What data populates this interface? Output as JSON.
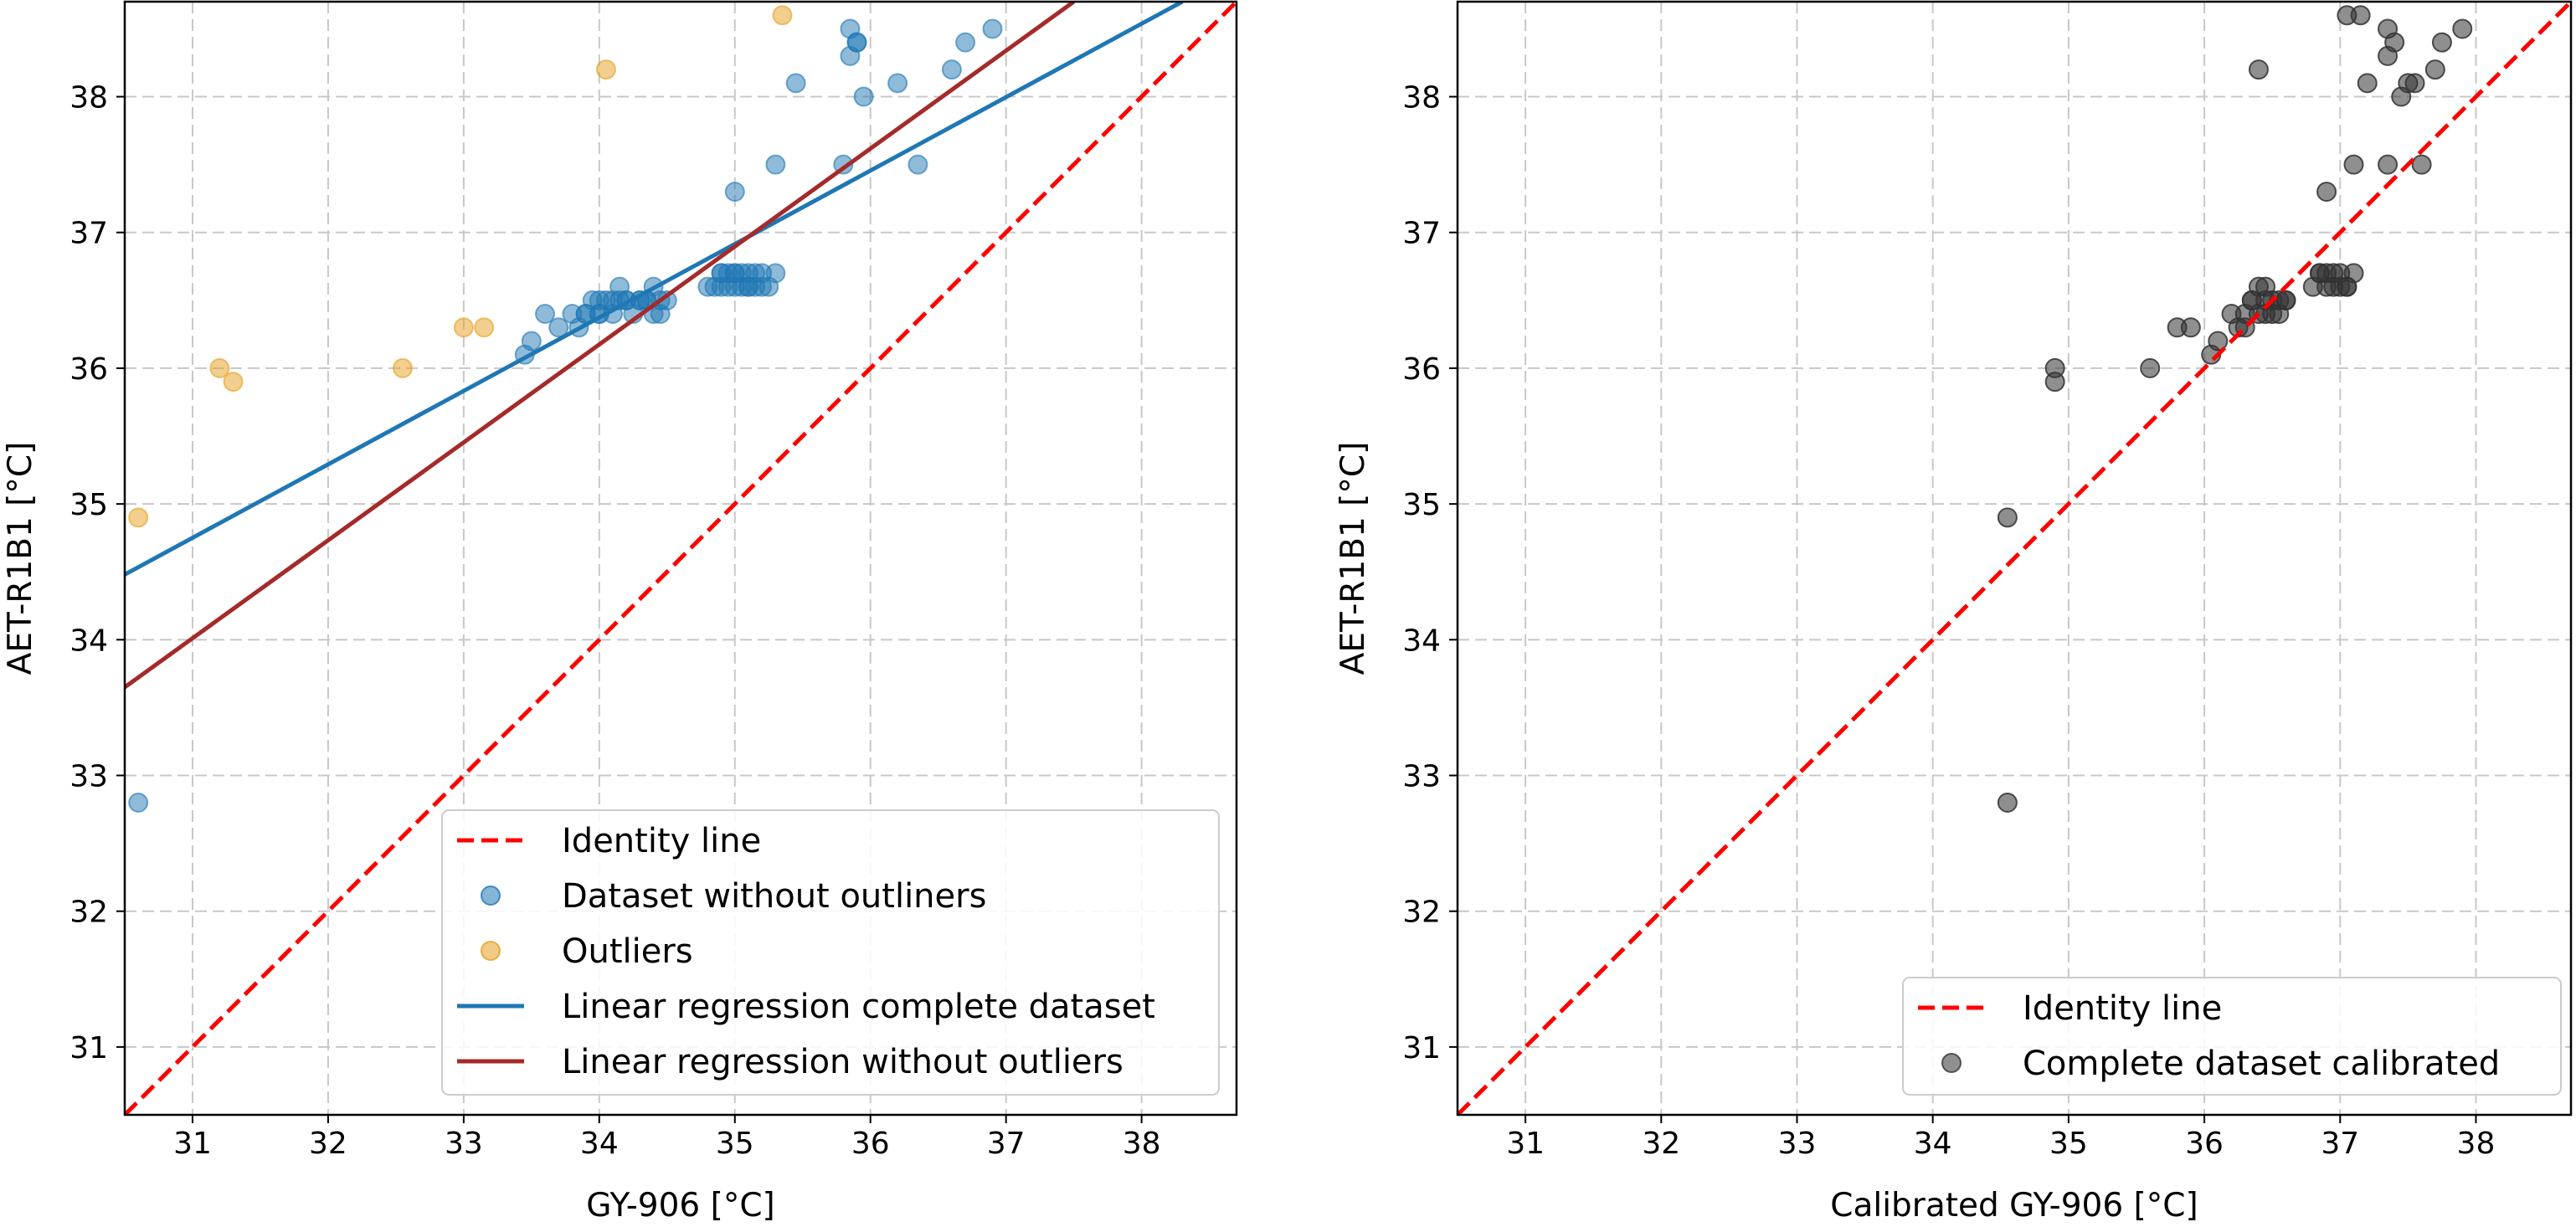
{
  "colors": {
    "identity": "#ff0000",
    "dataset": "#1f77b4",
    "outliers": "#e5a020",
    "reg_complete": "#1f77b4",
    "reg_without": "#a52a2a",
    "calibrated": "#333333",
    "grid": "#c8c8c8"
  },
  "chart_data": [
    {
      "type": "scatter",
      "xlabel": "GY-906 [°C]",
      "ylabel": "AET-R1B1 [°C]",
      "xlim": [
        30.5,
        38.7
      ],
      "ylim": [
        30.5,
        38.7
      ],
      "xticks": [
        "31",
        "32",
        "33",
        "34",
        "35",
        "36",
        "37",
        "38"
      ],
      "yticks": [
        "31",
        "32",
        "33",
        "34",
        "35",
        "36",
        "37",
        "38"
      ],
      "grid": true,
      "legend_position": "lower-right",
      "series": [
        {
          "name": "Identity line",
          "kind": "line",
          "style": "dashed",
          "color": "#ff0000",
          "x": [
            30.5,
            38.7
          ],
          "y": [
            30.5,
            38.7
          ]
        },
        {
          "name": "Dataset without outliners",
          "kind": "scatter",
          "color": "#1f77b4",
          "x": [
            30.6,
            33.45,
            33.5,
            33.6,
            33.7,
            33.8,
            33.85,
            33.9,
            33.95,
            34.0,
            34.05,
            34.1,
            34.15,
            34.2,
            34.25,
            34.3,
            34.35,
            34.4,
            34.45,
            34.5,
            33.9,
            34.0,
            34.1,
            34.2,
            34.3,
            34.4,
            34.0,
            34.15,
            34.35,
            34.45,
            34.8,
            34.85,
            34.9,
            34.95,
            35.0,
            35.05,
            35.1,
            35.15,
            35.2,
            35.25,
            34.9,
            35.0,
            35.1,
            35.2,
            35.3,
            34.95,
            35.05,
            35.15,
            34.9,
            35.0,
            35.1,
            35.0,
            35.3,
            35.85,
            35.9,
            35.95,
            35.9,
            35.85,
            35.8,
            35.45,
            36.2,
            36.6,
            36.7,
            36.9,
            36.35
          ],
          "y": [
            32.8,
            36.1,
            36.2,
            36.4,
            36.3,
            36.4,
            36.3,
            36.4,
            36.5,
            36.4,
            36.5,
            36.4,
            36.6,
            36.5,
            36.4,
            36.5,
            36.5,
            36.6,
            36.4,
            36.5,
            36.4,
            36.4,
            36.5,
            36.5,
            36.5,
            36.4,
            36.5,
            36.5,
            36.5,
            36.5,
            36.6,
            36.6,
            36.7,
            36.6,
            36.7,
            36.6,
            36.7,
            36.6,
            36.7,
            36.6,
            36.6,
            36.6,
            36.6,
            36.6,
            36.7,
            36.7,
            36.7,
            36.7,
            36.7,
            36.7,
            36.6,
            37.3,
            37.5,
            38.5,
            38.4,
            38.0,
            38.4,
            38.3,
            37.5,
            38.1,
            38.1,
            38.2,
            38.4,
            38.5,
            37.5
          ]
        },
        {
          "name": "Outliers",
          "kind": "scatter",
          "color": "#e5a020",
          "x": [
            30.6,
            31.2,
            31.3,
            32.55,
            33.0,
            33.15,
            34.05,
            35.35
          ],
          "y": [
            34.9,
            36.0,
            35.9,
            36.0,
            36.3,
            36.3,
            38.2,
            38.6
          ]
        },
        {
          "name": "Linear regression complete dataset",
          "kind": "line",
          "style": "solid",
          "color": "#1f77b4",
          "x": [
            30.5,
            38.3
          ],
          "y": [
            34.48,
            38.7
          ]
        },
        {
          "name": "Linear regression without outliers",
          "kind": "line",
          "style": "solid",
          "color": "#a52a2a",
          "x": [
            30.5,
            37.5
          ],
          "y": [
            33.65,
            38.7
          ]
        }
      ]
    },
    {
      "type": "scatter",
      "xlabel": "Calibrated GY-906 [°C]",
      "ylabel": "AET-R1B1 [°C]",
      "xlim": [
        30.5,
        38.7
      ],
      "ylim": [
        30.5,
        38.7
      ],
      "xticks": [
        "31",
        "32",
        "33",
        "34",
        "35",
        "36",
        "37",
        "38"
      ],
      "yticks": [
        "31",
        "32",
        "33",
        "34",
        "35",
        "36",
        "37",
        "38"
      ],
      "grid": true,
      "legend_position": "lower-right",
      "series": [
        {
          "name": "Identity line",
          "kind": "line",
          "style": "dashed",
          "color": "#ff0000",
          "x": [
            30.5,
            38.7
          ],
          "y": [
            30.5,
            38.7
          ]
        },
        {
          "name": "Complete dataset calibrated",
          "kind": "scatter",
          "color": "#333333",
          "x": [
            34.55,
            34.55,
            34.9,
            34.9,
            35.6,
            35.8,
            35.9,
            36.05,
            36.1,
            36.2,
            36.25,
            36.3,
            36.35,
            36.4,
            36.45,
            36.5,
            36.55,
            36.6,
            36.3,
            36.4,
            36.5,
            36.6,
            36.35,
            36.45,
            36.55,
            36.45,
            36.8,
            36.85,
            36.9,
            36.95,
            37.0,
            37.05,
            37.1,
            36.85,
            36.95,
            37.05,
            36.9,
            37.0,
            36.9,
            36.4,
            37.1,
            37.35,
            37.45,
            37.6,
            37.9,
            37.7,
            37.75,
            37.4,
            37.35,
            37.55,
            37.2,
            37.5,
            37.15,
            37.35,
            37.05
          ],
          "y": [
            32.8,
            34.9,
            36.0,
            35.9,
            36.0,
            36.3,
            36.3,
            36.1,
            36.2,
            36.4,
            36.3,
            36.4,
            36.5,
            36.4,
            36.5,
            36.5,
            36.4,
            36.5,
            36.3,
            36.6,
            36.4,
            36.5,
            36.5,
            36.4,
            36.5,
            36.6,
            36.6,
            36.7,
            36.6,
            36.7,
            36.6,
            36.6,
            36.7,
            36.7,
            36.6,
            36.6,
            36.7,
            36.7,
            37.3,
            38.2,
            37.5,
            37.5,
            38.0,
            37.5,
            38.5,
            38.2,
            38.4,
            38.4,
            38.5,
            38.1,
            38.1,
            38.1,
            38.6,
            38.3,
            38.6
          ]
        }
      ]
    }
  ]
}
